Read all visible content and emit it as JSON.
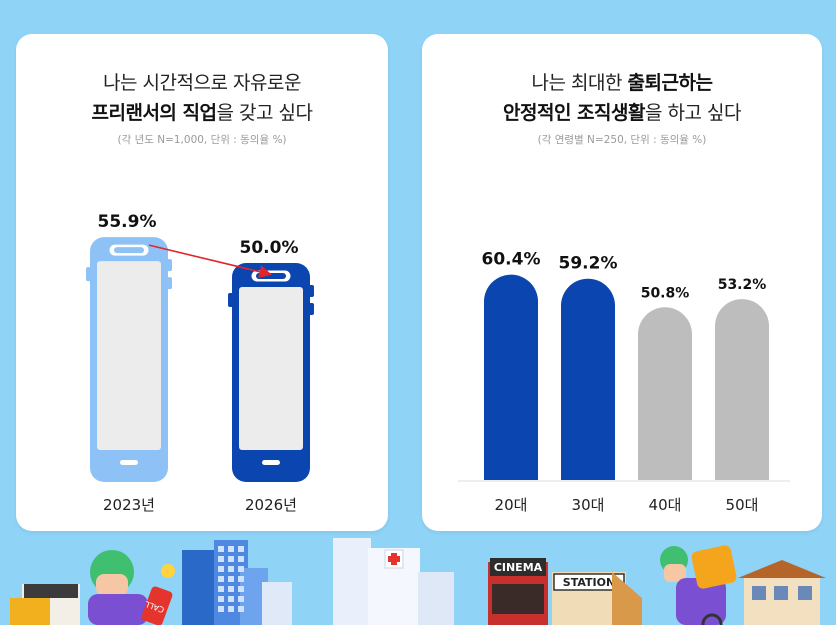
{
  "left_chart": {
    "title_line1": "나는 시간적으로 자유로운",
    "title_line2_bold": "프리랜서의 직업",
    "title_line2_rest": "을 갖고 싶다",
    "note": "(각 년도 N=1,000, 단위 : 동의율 %)"
  },
  "right_chart": {
    "title_line1_plain": "나는 최대한 ",
    "title_line1_bold": "출퇴근하는",
    "title_line2_bold": "안정적인 조직생활",
    "title_line2_rest": "을 하고 싶다",
    "note": "(각 연령별 N=250, 단위 : 동의율 %)"
  },
  "illustration": {
    "cinema_sign": "CINEMA",
    "station_sign": "STATION",
    "phone_sticker": "CALL"
  },
  "colors": {
    "background": "#8fd3f7",
    "light_blue": "#8ec2f7",
    "dark_blue": "#0a45b0",
    "gray": "#bdbdbd",
    "arrow_red": "#e0262b"
  },
  "chart_data": [
    {
      "type": "bar",
      "categories": [
        "2023년",
        "2026년"
      ],
      "values": [
        55.9,
        50.0
      ],
      "labels": [
        "55.9%",
        "50.0%"
      ],
      "ylabel": "",
      "xlabel": "",
      "ylim": [
        0,
        100
      ],
      "grid": false,
      "style": "phone-shaped bars with red arrow from 2023 to 2026"
    },
    {
      "type": "bar",
      "categories": [
        "20대",
        "30대",
        "40대",
        "50대"
      ],
      "values": [
        60.4,
        59.2,
        50.8,
        53.2
      ],
      "labels": [
        "60.4%",
        "59.2%",
        "50.8%",
        "53.2%"
      ],
      "highlight": [
        true,
        true,
        false,
        false
      ],
      "ylabel": "",
      "xlabel": "",
      "ylim": [
        0,
        100
      ],
      "grid": false
    }
  ]
}
